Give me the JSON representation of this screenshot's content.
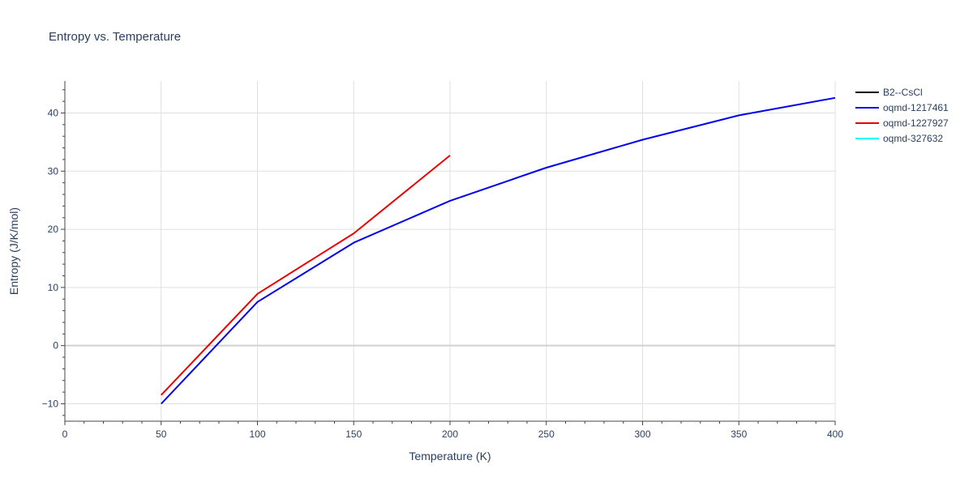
{
  "chart_data": {
    "type": "line",
    "title": "Entropy vs. Temperature",
    "xlabel": "Temperature (K)",
    "ylabel": "Entropy (J/K/mol)",
    "xlim": [
      0,
      400
    ],
    "ylim": [
      -13,
      45.5
    ],
    "x_ticks": [
      0,
      50,
      100,
      150,
      200,
      250,
      300,
      350,
      400
    ],
    "y_ticks": [
      -10,
      0,
      10,
      20,
      30,
      40
    ],
    "grid": true,
    "legend_position": "top-right",
    "series": [
      {
        "name": "B2--CsCl",
        "color": "#000000",
        "x": [],
        "y": []
      },
      {
        "name": "oqmd-1217461",
        "color": "#0000ee",
        "x": [
          50,
          100,
          150,
          200,
          250,
          300,
          350,
          400
        ],
        "y": [
          -10,
          7.5,
          17.7,
          24.9,
          30.6,
          35.4,
          39.6,
          42.6
        ]
      },
      {
        "name": "oqmd-1227927",
        "color": "#ee0000",
        "x": [
          50,
          100,
          150,
          200
        ],
        "y": [
          -8.5,
          8.9,
          19.3,
          32.7
        ]
      },
      {
        "name": "oqmd-327632",
        "color": "#00ffff",
        "x": [],
        "y": []
      }
    ]
  }
}
